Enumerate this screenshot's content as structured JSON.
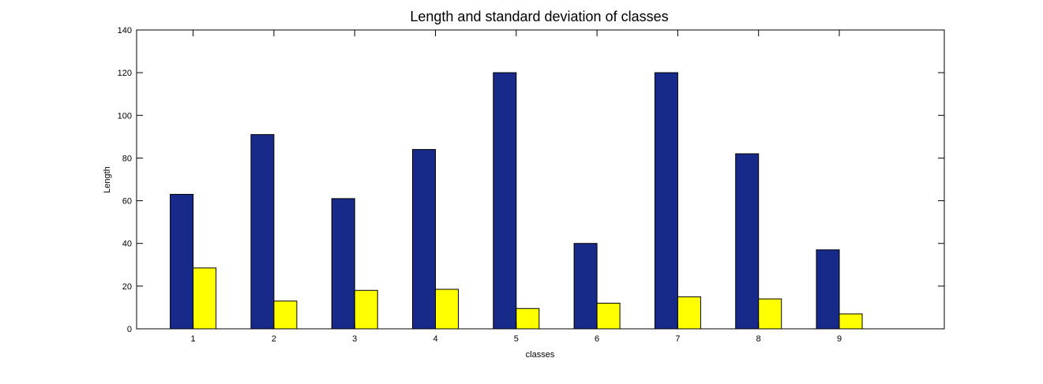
{
  "chart_data": {
    "type": "bar",
    "title": "Length and standard deviation of classes",
    "xlabel": "classes",
    "ylabel": "Length",
    "categories": [
      "1",
      "2",
      "3",
      "4",
      "5",
      "6",
      "7",
      "8",
      "9"
    ],
    "series": [
      {
        "color": "#172a8a",
        "values": [
          63,
          91,
          61,
          84,
          120,
          40,
          120,
          82,
          37
        ]
      },
      {
        "color": "#ffff00",
        "values": [
          28.5,
          13,
          18,
          18.5,
          9.5,
          12,
          15,
          14,
          7
        ]
      }
    ],
    "ylim": [
      0,
      140
    ],
    "yticks": [
      "0",
      "20",
      "40",
      "60",
      "80",
      "100",
      "120",
      "140"
    ],
    "xlim": [
      0.3,
      10.3
    ],
    "grid": false,
    "legend": "none"
  }
}
